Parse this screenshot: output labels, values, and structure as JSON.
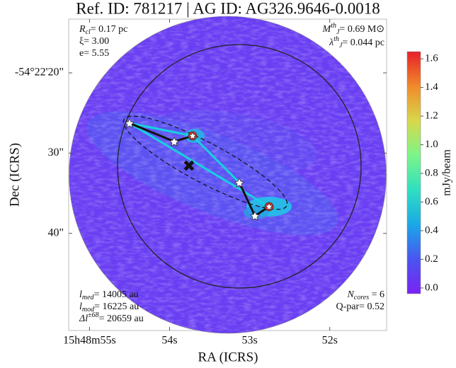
{
  "chart_data": {
    "type": "image",
    "title": "Ref. ID: 781217 | AG ID: AG326.9646-0.0018",
    "x_label": "RA (ICRS)",
    "y_label": "Dec (ICRS)",
    "xlim": [
      55.26,
      51.29
    ],
    "xticks": [
      {
        "value": 55,
        "label": "15h48m55s"
      },
      {
        "value": 54,
        "label": "54s"
      },
      {
        "value": 53,
        "label": "53s"
      },
      {
        "value": 52,
        "label": "52s"
      }
    ],
    "ylim": [
      13.3,
      52.1
    ],
    "yticks": [
      {
        "value": 20,
        "label": "-54°22'20\""
      },
      {
        "value": 30,
        "label": "30\""
      },
      {
        "value": 40,
        "label": "40\""
      }
    ],
    "colorbar": {
      "label": "mJy/beam",
      "clim": [
        -0.04,
        1.65
      ],
      "ticks": [
        {
          "value": 0,
          "label": "0.0"
        },
        {
          "value": 0.2,
          "label": "0.2"
        },
        {
          "value": 0.4,
          "label": "0.4"
        },
        {
          "value": 0.6,
          "label": "0.6"
        },
        {
          "value": 0.8,
          "label": "0.8"
        },
        {
          "value": 1,
          "label": "1.0"
        },
        {
          "value": 1.2,
          "label": "1.2"
        },
        {
          "value": 1.4,
          "label": "1.4"
        },
        {
          "value": 1.6,
          "label": "1.6"
        }
      ],
      "colors": [
        "#7a22f5",
        "#4a55f0",
        "#1aa8e8",
        "#2ee0c0",
        "#7cf58a",
        "#d8d84a",
        "#f08a2a",
        "#e8202a"
      ]
    },
    "annotations": {
      "top_left": [
        [
          {
            "text": "R"
          },
          {
            "sub": "cl"
          },
          {
            "text": "= 0.17 pc"
          }
        ],
        [
          {
            "text": "ξ= 3.00"
          }
        ],
        [
          {
            "text": "e= 5.55"
          }
        ]
      ],
      "top_right": [
        [
          {
            "text": "M"
          },
          {
            "sup": "th"
          },
          {
            "sub": "J"
          },
          {
            "text": "= 0.69 M⊙"
          }
        ],
        [
          {
            "text": "λ"
          },
          {
            "sup": "th"
          },
          {
            "sub": "J"
          },
          {
            "text": "= 0.044 pc"
          }
        ]
      ],
      "bottom_left": [
        [
          {
            "text": "l"
          },
          {
            "sub": "med"
          },
          {
            "text": "= 14005 au"
          }
        ],
        [
          {
            "text": "l"
          },
          {
            "sub": "mod"
          },
          {
            "text": "= 16225 au"
          }
        ],
        [
          {
            "text": "Δl"
          },
          {
            "sup": "±68"
          },
          {
            "text": "= 20659 au"
          }
        ]
      ],
      "bottom_right": [
        [
          {
            "text": "N"
          },
          {
            "sub": "cores"
          },
          {
            "text": " = 6"
          }
        ],
        [
          {
            "text": "Q-par= 0.52"
          }
        ]
      ]
    }
  }
}
